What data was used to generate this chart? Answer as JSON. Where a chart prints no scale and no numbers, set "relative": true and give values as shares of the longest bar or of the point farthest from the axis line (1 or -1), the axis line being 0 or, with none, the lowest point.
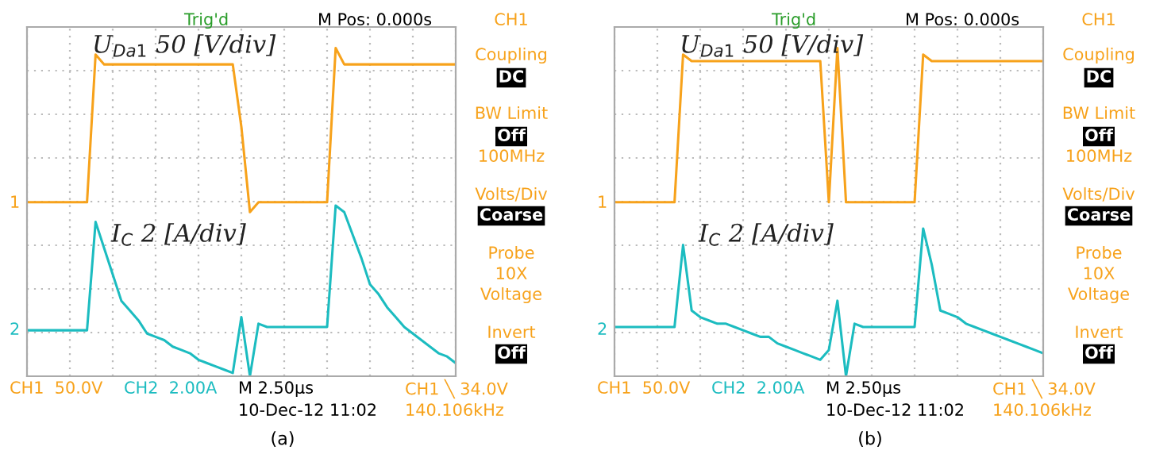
{
  "chart_data": [
    {
      "type": "line",
      "relative": true,
      "xlabel": "(a)",
      "grid": true,
      "categories": [
        null,
        null,
        null,
        null,
        null,
        null,
        null,
        null,
        null,
        null,
        null,
        null,
        null,
        null,
        null,
        null,
        null,
        null,
        null,
        null,
        null,
        null,
        null,
        null,
        null,
        null,
        null,
        null,
        null,
        null,
        null,
        null,
        null,
        null,
        null,
        null,
        null,
        null,
        null,
        null,
        null,
        null,
        null,
        null,
        null,
        null,
        null,
        null,
        null,
        null,
        null
      ],
      "series": [
        {
          "color": "#f7a21b",
          "values": [
            0.53,
            0.53,
            0.53,
            0.53,
            0.53,
            0.53,
            0.53,
            0.53,
            0.98,
            0.95,
            0.95,
            0.95,
            0.95,
            0.95,
            0.95,
            0.95,
            0.95,
            0.95,
            0.95,
            0.95,
            0.95,
            0.95,
            0.95,
            0.95,
            0.95,
            0.76,
            0.5,
            0.53,
            0.53,
            0.53,
            0.53,
            0.53,
            0.53,
            0.53,
            0.53,
            0.53,
            1.0,
            0.95,
            0.95,
            0.95,
            0.95,
            0.95,
            0.95,
            0.95,
            0.95,
            0.95,
            0.95,
            0.95,
            0.95,
            0.95,
            0.95
          ]
        },
        {
          "color": "#1cbcc0",
          "values": [
            0.14,
            0.14,
            0.14,
            0.14,
            0.14,
            0.14,
            0.14,
            0.14,
            0.47,
            0.39,
            0.31,
            0.23,
            0.2,
            0.17,
            0.13,
            0.12,
            0.11,
            0.09,
            0.08,
            0.07,
            0.05,
            0.04,
            0.03,
            0.02,
            0.01,
            0.18,
            0,
            0.16,
            0.15,
            0.15,
            0.15,
            0.15,
            0.15,
            0.15,
            0.15,
            0.15,
            0.52,
            0.5,
            0.43,
            0.36,
            0.28,
            0.25,
            0.21,
            0.18,
            0.15,
            0.13,
            0.11,
            0.09,
            0.07,
            0.06,
            0.04
          ]
        }
      ],
      "annotations": [
        "Trig'd",
        "M Pos: 0.000s",
        "CH1",
        "Coupling",
        "DC",
        "BW Limit",
        "Off",
        "100MHz",
        "Volts/Div",
        "Coarse",
        "Probe",
        "10X",
        "Voltage",
        "Invert",
        "Off",
        "CH1  50.0V",
        "CH2  2.00A",
        "M 2.50µs",
        "CH1 ╲ 34.0V",
        "10-Dec-12 11:02",
        "140.106kHz",
        "U$_{Da1}$ 50 [V/div]",
        "I$_{C}$ 2 [A/div]",
        "1",
        "2"
      ]
    },
    {
      "type": "line",
      "relative": true,
      "xlabel": "(b)",
      "grid": true,
      "categories": [
        null,
        null,
        null,
        null,
        null,
        null,
        null,
        null,
        null,
        null,
        null,
        null,
        null,
        null,
        null,
        null,
        null,
        null,
        null,
        null,
        null,
        null,
        null,
        null,
        null,
        null,
        null,
        null,
        null,
        null,
        null,
        null,
        null,
        null,
        null,
        null,
        null,
        null,
        null,
        null,
        null,
        null,
        null,
        null,
        null,
        null,
        null,
        null,
        null,
        null,
        null
      ],
      "series": [
        {
          "color": "#f7a21b",
          "values": [
            0.53,
            0.53,
            0.53,
            0.53,
            0.53,
            0.53,
            0.53,
            0.53,
            0.98,
            0.96,
            0.96,
            0.96,
            0.96,
            0.96,
            0.96,
            0.96,
            0.96,
            0.96,
            0.96,
            0.96,
            0.96,
            0.96,
            0.96,
            0.96,
            0.96,
            0.53,
            1.0,
            0.53,
            0.53,
            0.53,
            0.53,
            0.53,
            0.53,
            0.53,
            0.53,
            0.53,
            0.98,
            0.96,
            0.96,
            0.96,
            0.96,
            0.96,
            0.96,
            0.96,
            0.96,
            0.96,
            0.96,
            0.96,
            0.96,
            0.96,
            0.96
          ]
        },
        {
          "color": "#1cbcc0",
          "values": [
            0.15,
            0.15,
            0.15,
            0.15,
            0.15,
            0.15,
            0.15,
            0.15,
            0.4,
            0.2,
            0.18,
            0.17,
            0.16,
            0.16,
            0.15,
            0.14,
            0.13,
            0.12,
            0.12,
            0.1,
            0.09,
            0.08,
            0.07,
            0.06,
            0.05,
            0.08,
            0.23,
            0,
            0.16,
            0.15,
            0.15,
            0.15,
            0.15,
            0.15,
            0.15,
            0.15,
            0.45,
            0.34,
            0.2,
            0.19,
            0.18,
            0.16,
            0.15,
            0.14,
            0.13,
            0.12,
            0.11,
            0.1,
            0.09,
            0.08,
            0.07
          ]
        }
      ],
      "annotations": [
        "Trig'd",
        "M Pos: 0.000s",
        "CH1",
        "Coupling",
        "DC",
        "BW Limit",
        "Off",
        "100MHz",
        "Volts/Div",
        "Coarse",
        "Probe",
        "10X",
        "Voltage",
        "Invert",
        "Off",
        "CH1  50.0V",
        "CH2  2.00A",
        "M 2.50µs",
        "CH1 ╲ 34.0V",
        "10-Dec-12 11:02",
        "140.106kHz",
        "U$_{Da1}$ 50 [V/div]",
        "I$_{C}$ 2 [A/div]",
        "1",
        "2"
      ]
    }
  ]
}
